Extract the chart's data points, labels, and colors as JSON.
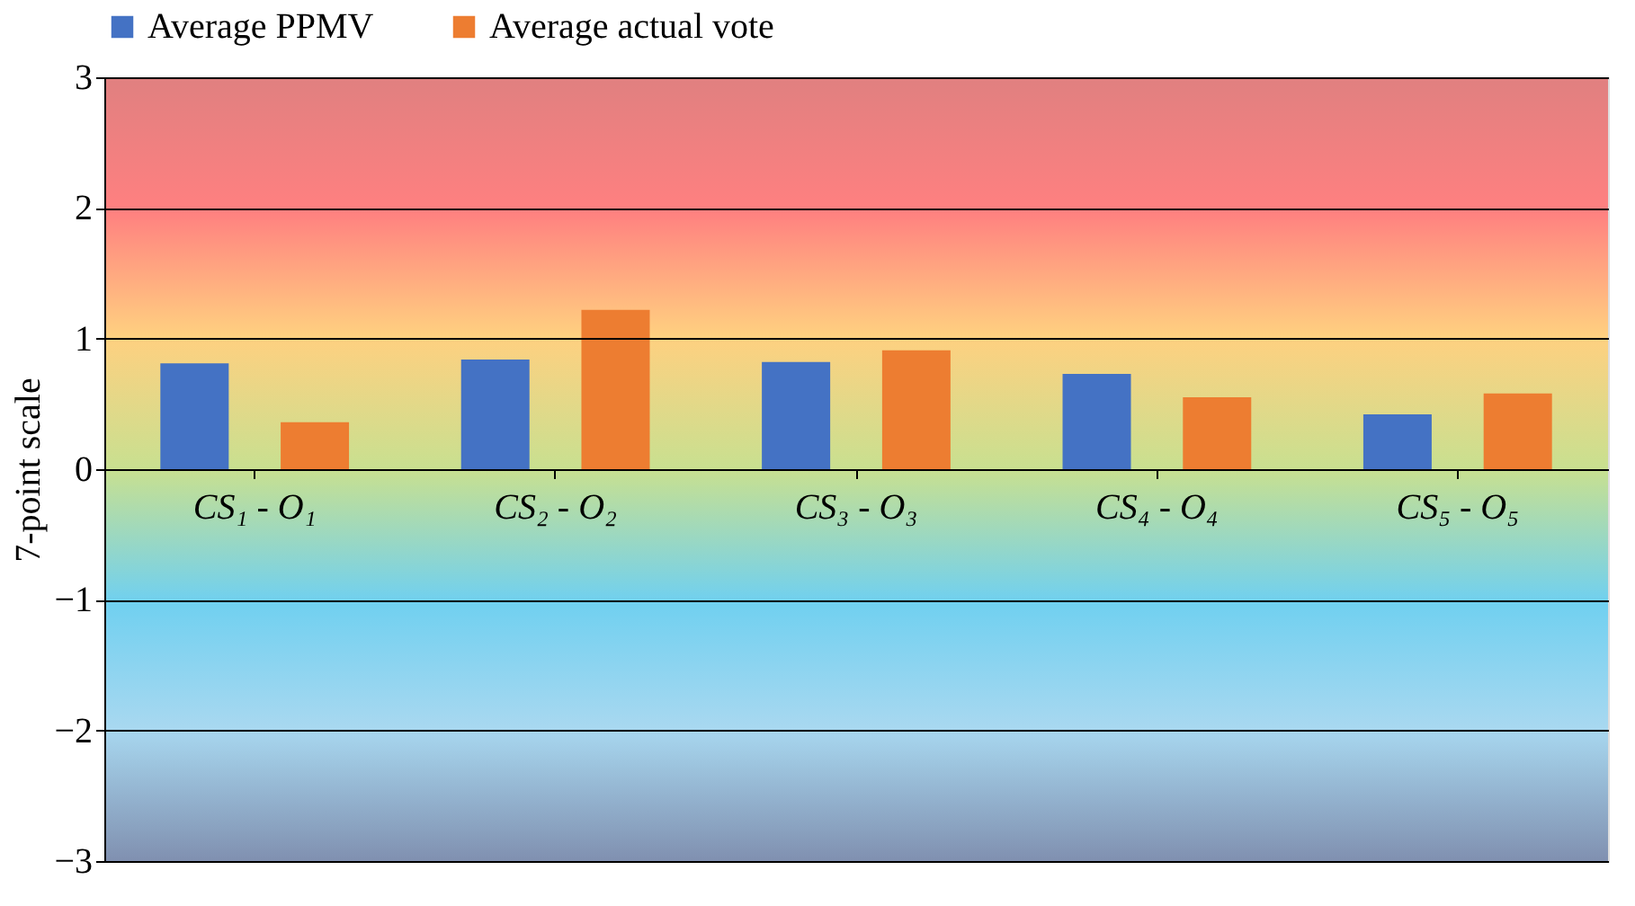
{
  "chart_data": {
    "type": "bar",
    "ylabel": "7-point scale",
    "categories": [
      "CS₁ - O₁",
      "CS₂ - O₂",
      "CS₃ - O₃",
      "CS₄ - O₄",
      "CS₅ - O₅"
    ],
    "series": [
      {
        "name": "Average PPMV",
        "color": "#4472c4",
        "values": [
          0.81,
          0.84,
          0.82,
          0.73,
          0.42
        ]
      },
      {
        "name": "Average actual vote",
        "color": "#ed7d31",
        "values": [
          0.36,
          1.22,
          0.91,
          0.55,
          0.58
        ]
      }
    ],
    "ylim": [
      -3,
      3
    ],
    "yticks": [
      -3,
      -2,
      -1,
      0,
      1,
      2,
      3
    ],
    "grid": "y",
    "legend": "top"
  }
}
